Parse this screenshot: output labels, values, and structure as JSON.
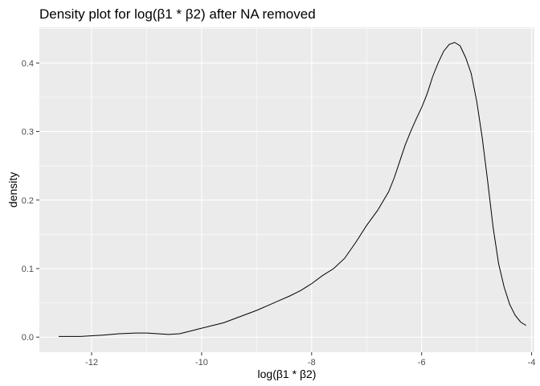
{
  "chart_data": {
    "type": "line",
    "title": "Density plot for log(β1 * β2) after NA removed",
    "xlabel": "log(β1 * β2)",
    "ylabel": "density",
    "xlim": [
      -12.95,
      -3.95
    ],
    "ylim": [
      -0.022,
      0.452
    ],
    "x_ticks": [
      -12,
      -10,
      -8,
      -6,
      -4
    ],
    "x_tick_labels": [
      "-12",
      "-10",
      "-8",
      "-6",
      "-4"
    ],
    "y_ticks": [
      0.0,
      0.1,
      0.2,
      0.3,
      0.4
    ],
    "y_tick_labels": [
      "0.0",
      "0.1",
      "0.2",
      "0.3",
      "0.4"
    ],
    "grid": true,
    "background": "#ebebeb",
    "grid_color": "#ffffff",
    "line_color": "#000000",
    "series": [
      {
        "x": [
          -12.6,
          -12.2,
          -11.8,
          -11.5,
          -11.2,
          -11.0,
          -10.8,
          -10.6,
          -10.4,
          -10.2,
          -10.0,
          -9.8,
          -9.6,
          -9.4,
          -9.2,
          -9.0,
          -8.8,
          -8.6,
          -8.4,
          -8.2,
          -8.0,
          -7.8,
          -7.6,
          -7.4,
          -7.2,
          -7.0,
          -6.8,
          -6.6,
          -6.5,
          -6.4,
          -6.3,
          -6.2,
          -6.1,
          -6.0,
          -5.9,
          -5.8,
          -5.7,
          -5.6,
          -5.5,
          -5.4,
          -5.3,
          -5.2,
          -5.1,
          -5.0,
          -4.9,
          -4.8,
          -4.7,
          -4.6,
          -4.5,
          -4.4,
          -4.3,
          -4.2,
          -4.1
        ],
        "y": [
          0.001,
          0.001,
          0.003,
          0.005,
          0.006,
          0.006,
          0.005,
          0.004,
          0.005,
          0.009,
          0.013,
          0.017,
          0.021,
          0.027,
          0.033,
          0.039,
          0.046,
          0.053,
          0.06,
          0.068,
          0.078,
          0.09,
          0.1,
          0.115,
          0.138,
          0.163,
          0.185,
          0.212,
          0.232,
          0.256,
          0.28,
          0.3,
          0.318,
          0.335,
          0.355,
          0.38,
          0.4,
          0.417,
          0.427,
          0.43,
          0.425,
          0.408,
          0.385,
          0.345,
          0.292,
          0.228,
          0.16,
          0.107,
          0.073,
          0.048,
          0.032,
          0.022,
          0.017
        ]
      }
    ]
  }
}
